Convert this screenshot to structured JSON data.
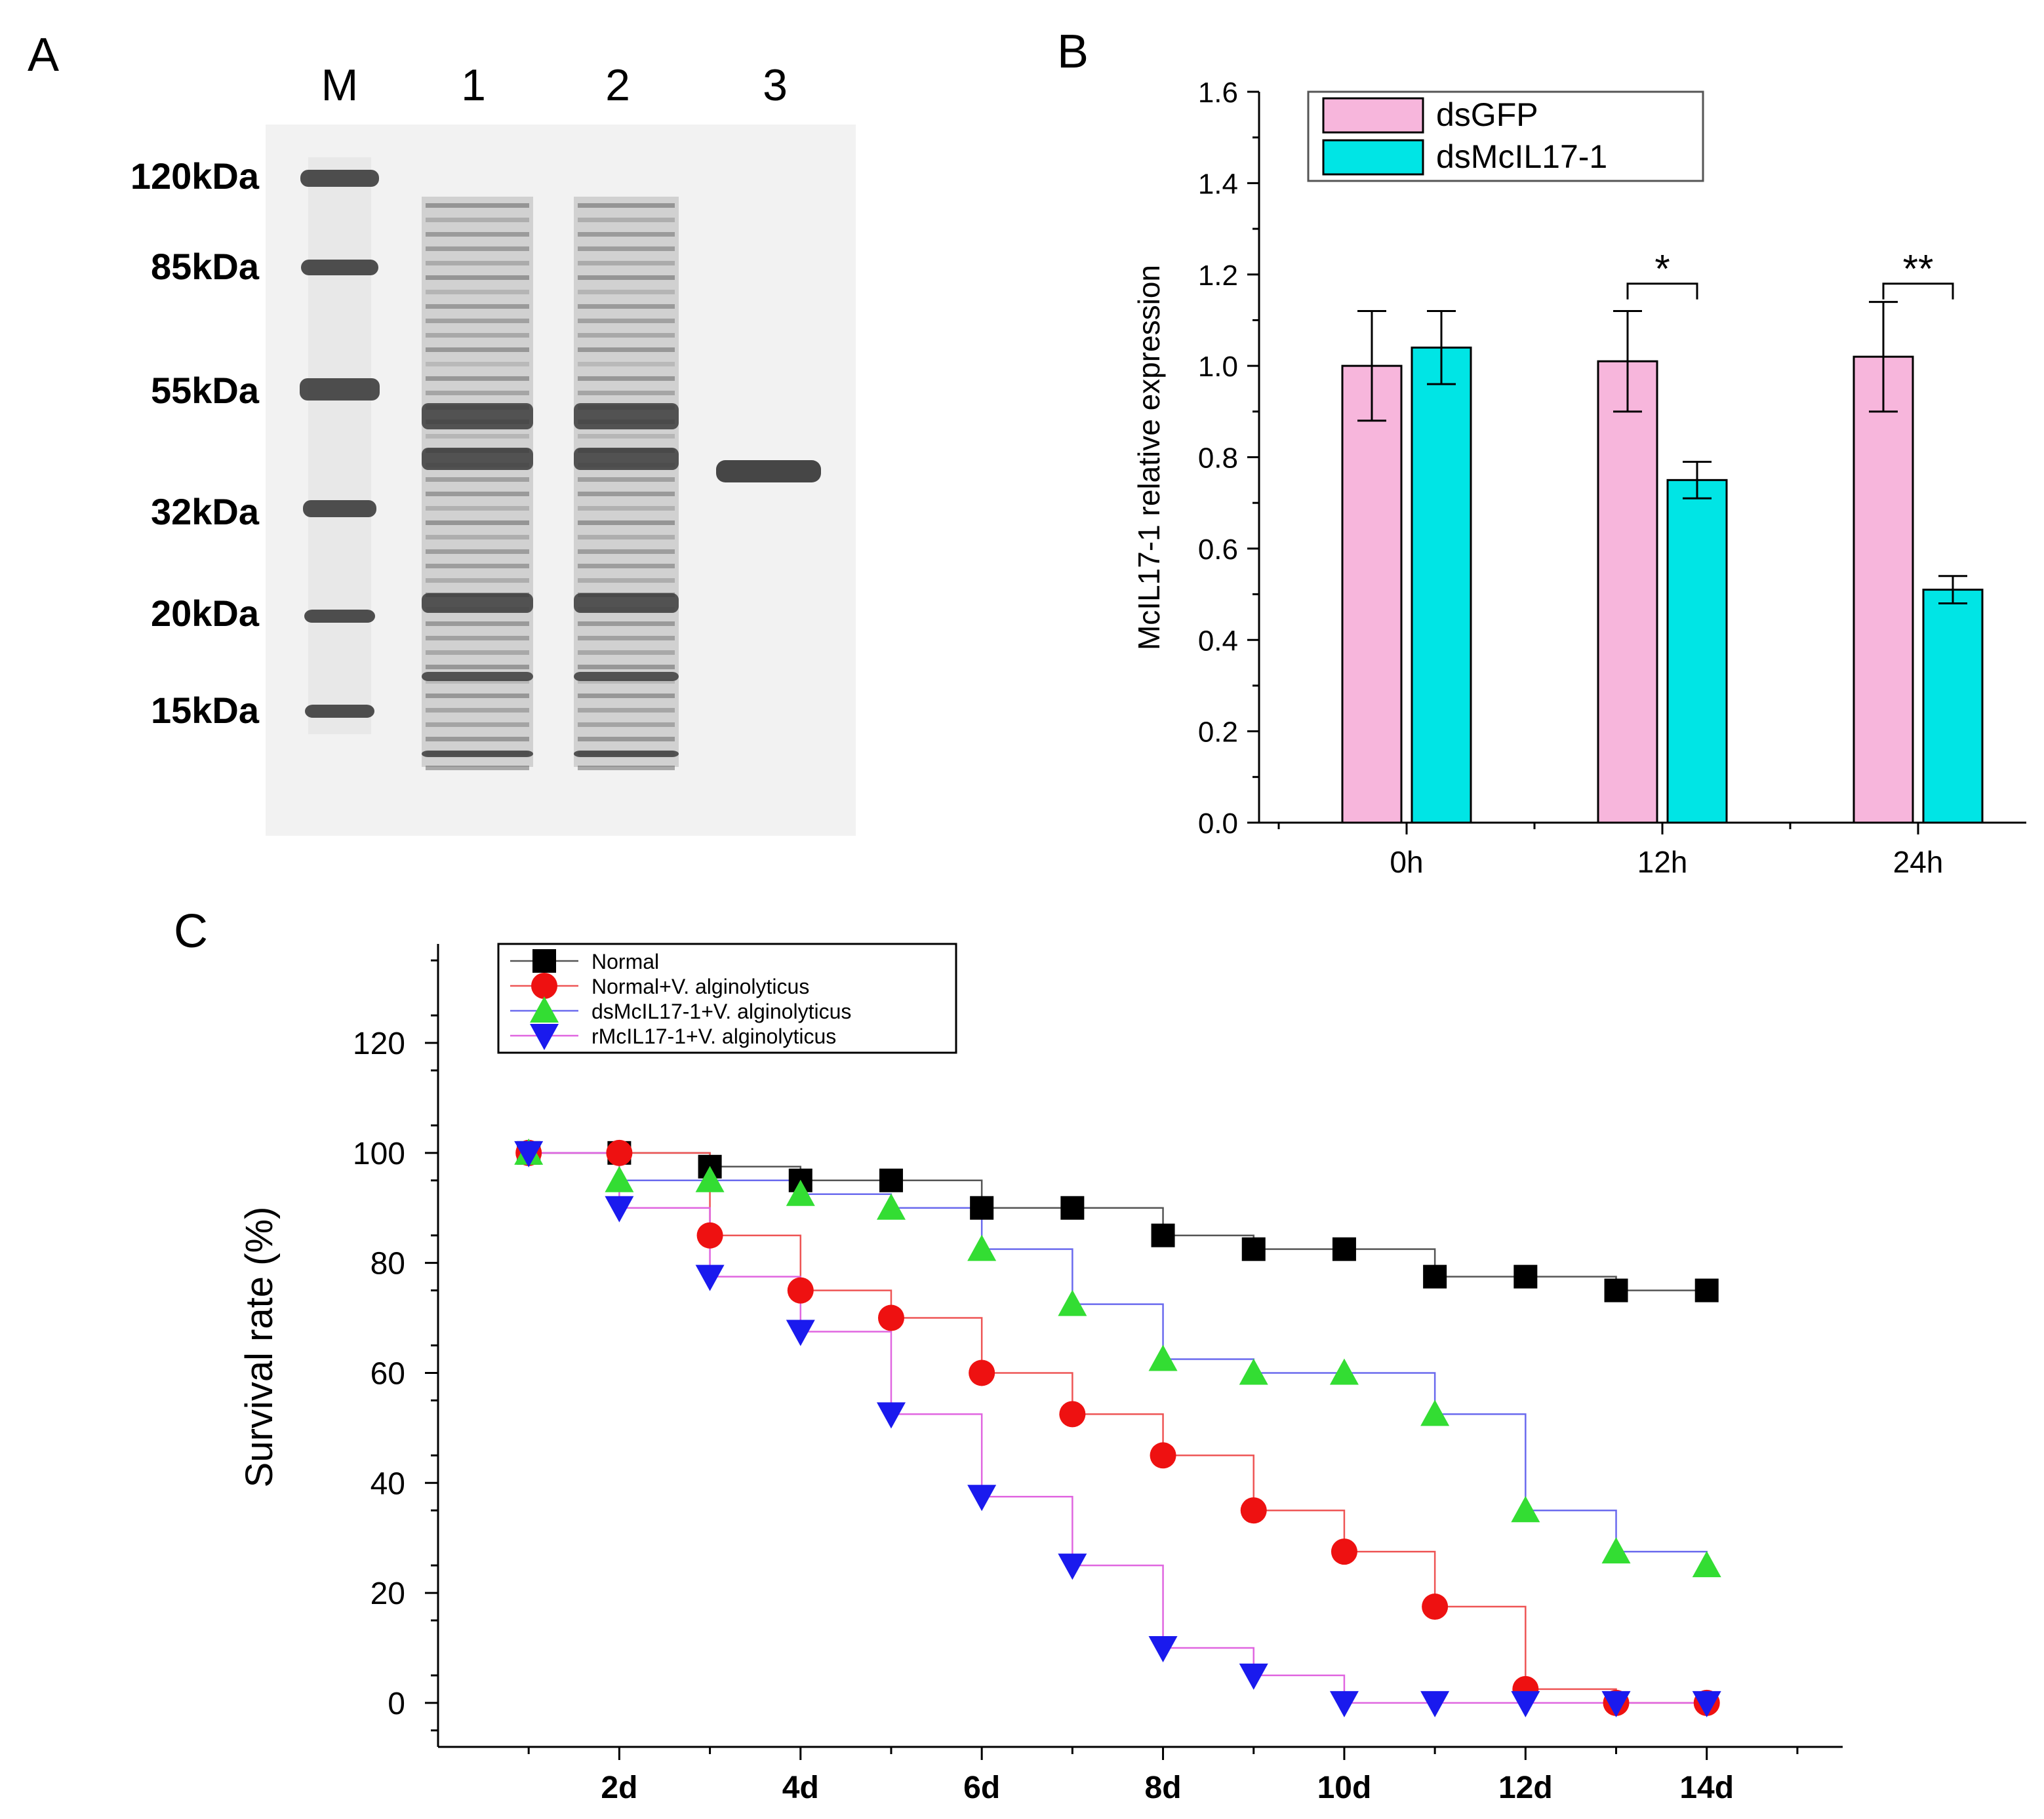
{
  "panels": {
    "a": {
      "label": "A",
      "lane_labels": [
        "M",
        "1",
        "2",
        "3"
      ],
      "marker_labels": [
        "120kDa",
        "85kDa",
        "55kDa",
        "32kDa",
        "20kDa",
        "15kDa"
      ],
      "colors": {
        "gel_bg": "#f2f2f2",
        "band": "#3c3c3c"
      }
    },
    "b": {
      "label": "B"
    },
    "c": {
      "label": "C"
    }
  },
  "chart_data": [
    {
      "id": "b",
      "type": "bar",
      "title": "",
      "xlabel": "",
      "ylabel": "McIL17-1 relative expression",
      "categories": [
        "0h",
        "12h",
        "24h"
      ],
      "ylim": [
        0,
        1.6
      ],
      "yticks": [
        0.0,
        0.2,
        0.4,
        0.6,
        0.8,
        1.0,
        1.2,
        1.4,
        1.6
      ],
      "ytick_labels": [
        "0.0",
        "0.2",
        "0.4",
        "0.6",
        "0.8",
        "1.0",
        "1.2",
        "1.4",
        "1.6"
      ],
      "series": [
        {
          "name": "dsGFP",
          "color": "#f7b6dc",
          "values": [
            1.0,
            1.01,
            1.02
          ],
          "errors": [
            0.12,
            0.11,
            0.12
          ]
        },
        {
          "name": "dsMcIL17-1",
          "color": "#00e5e5",
          "values": [
            1.04,
            0.75,
            0.51
          ],
          "errors": [
            0.08,
            0.04,
            0.03
          ]
        }
      ],
      "significance": [
        {
          "category": "12h",
          "label": "*"
        },
        {
          "category": "24h",
          "label": "**"
        }
      ],
      "legend": "top-left"
    },
    {
      "id": "c",
      "type": "line",
      "step": true,
      "title": "",
      "xlabel": "",
      "ylabel": "Survival rate (%)",
      "x": [
        1,
        2,
        3,
        4,
        5,
        6,
        7,
        8,
        9,
        10,
        11,
        12,
        13,
        14
      ],
      "xlim": [
        0,
        15.5
      ],
      "xticks": [
        2,
        4,
        6,
        8,
        10,
        12,
        14
      ],
      "xtick_labels": [
        "2d",
        "4d",
        "6d",
        "8d",
        "10d",
        "12d",
        "14d"
      ],
      "ylim": [
        -8,
        138
      ],
      "yticks": [
        0,
        20,
        40,
        60,
        80,
        100,
        120
      ],
      "ytick_labels": [
        "0",
        "20",
        "40",
        "60",
        "80",
        "100",
        "120"
      ],
      "series": [
        {
          "name": "Normal",
          "marker": "square",
          "color": "#000000",
          "line_color": "#555555",
          "values": [
            100,
            100,
            97.5,
            95,
            95,
            90,
            90,
            85,
            82.5,
            82.5,
            77.5,
            77.5,
            75,
            75
          ]
        },
        {
          "name": "Normal+V. alginolyticus",
          "marker": "circle",
          "color": "#ee1111",
          "line_color": "#ee5555",
          "values": [
            100,
            100,
            85,
            75,
            70,
            60,
            52.5,
            45,
            35,
            27.5,
            17.5,
            2.5,
            0,
            0
          ]
        },
        {
          "name": "dsMcIL17-1+V. alginolyticus",
          "marker": "triangle-up",
          "color": "#33dd33",
          "line_color": "#6a6aee",
          "values": [
            100,
            95,
            95,
            92.5,
            90,
            82.5,
            72.5,
            62.5,
            60,
            60,
            52.5,
            35,
            27.5,
            25
          ]
        },
        {
          "name": "rMcIL17-1+V. alginolyticus",
          "marker": "triangle-down",
          "color": "#1a1aee",
          "line_color": "#e066e0",
          "values": [
            100,
            90,
            77.5,
            67.5,
            52.5,
            37.5,
            25,
            10,
            5,
            0,
            0,
            0,
            0,
            0
          ]
        }
      ],
      "legend": "top-left"
    }
  ]
}
